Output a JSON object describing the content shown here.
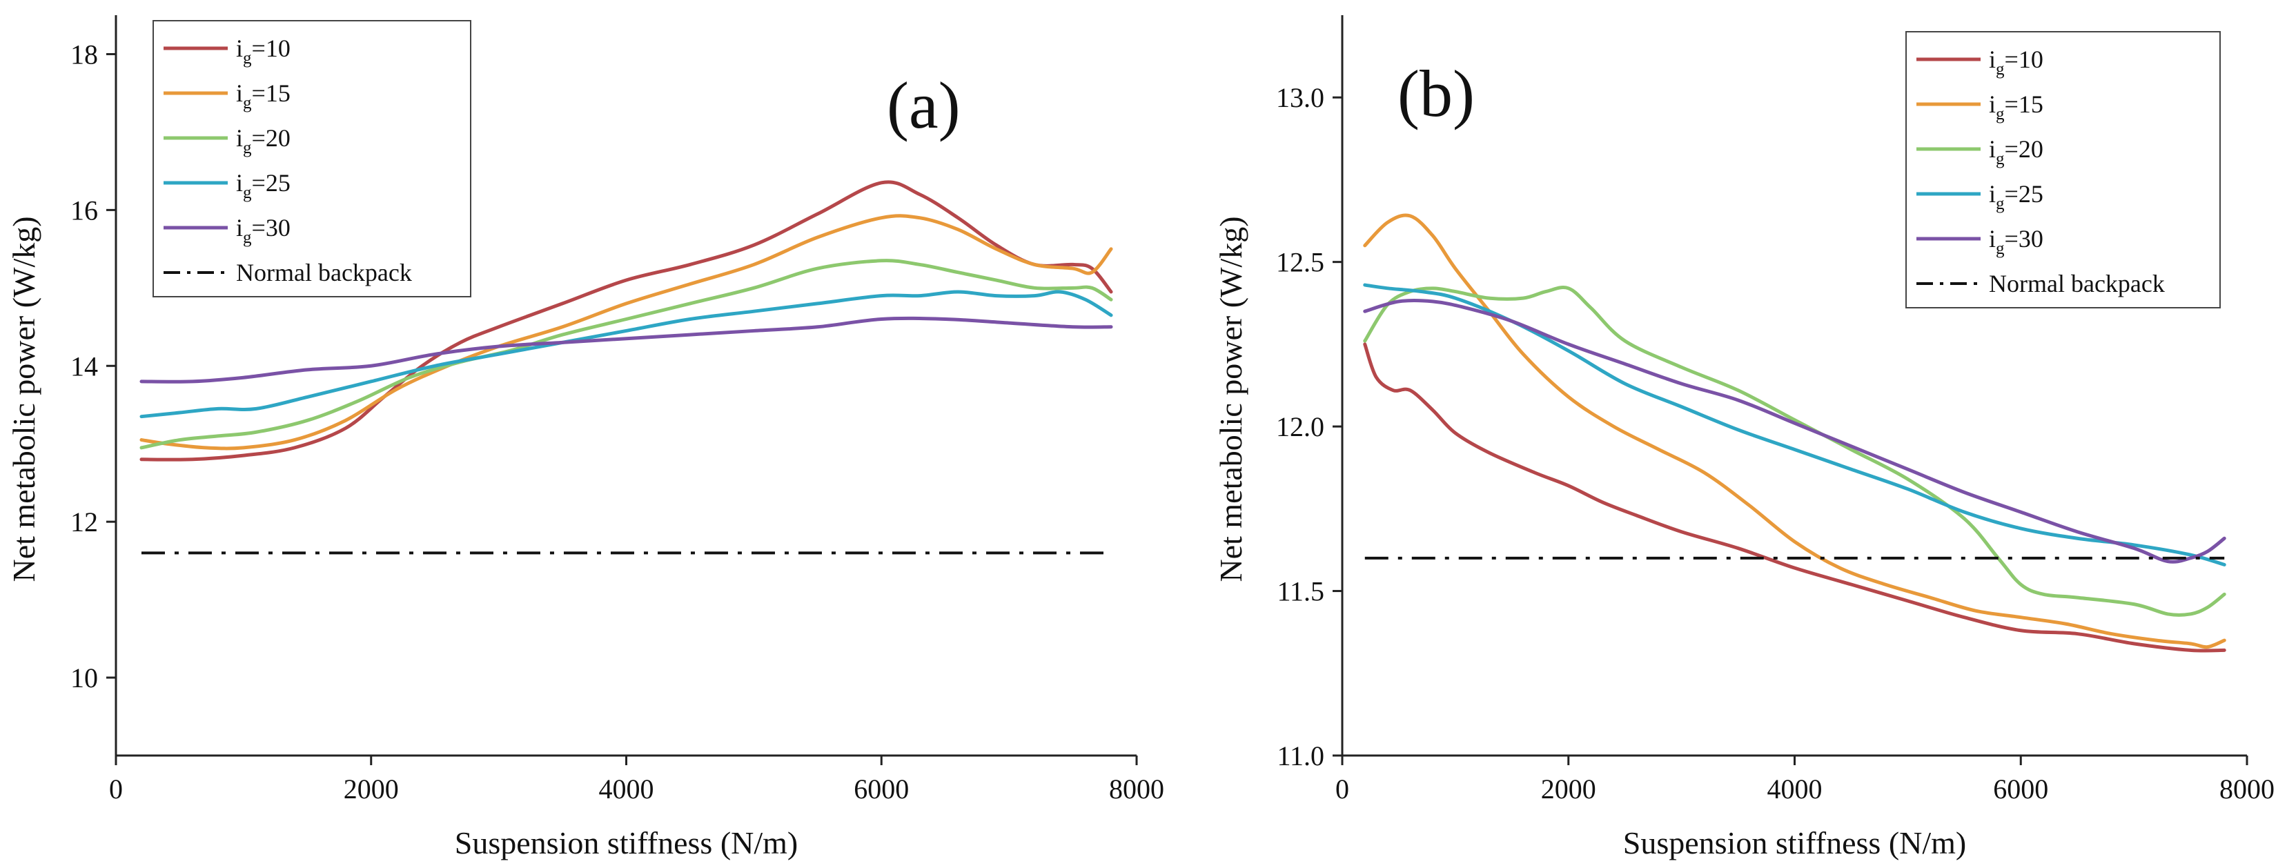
{
  "chart_data": [
    {
      "type": "line",
      "panel_label": "(a)",
      "xlabel": "Suspension stiffness (N/m)",
      "ylabel": "Net metabolic power (W/kg)",
      "xlim": [
        0,
        8000
      ],
      "ylim": [
        9,
        18.5
      ],
      "xticks": [
        0,
        2000,
        4000,
        6000,
        8000
      ],
      "xtick_labels": [
        "0",
        "2000",
        "4000",
        "6000",
        "8000"
      ],
      "yticks": [
        10,
        12,
        14,
        16,
        18
      ],
      "ytick_labels": [
        "10",
        "12",
        "14",
        "16",
        "18"
      ],
      "legend_position": "top-left",
      "series": [
        {
          "name": "i_g=10",
          "label_main": "i",
          "label_sub": "g",
          "label_rest": "=10",
          "color": "#b5474a",
          "x": [
            200,
            600,
            1000,
            1400,
            1800,
            2100,
            2400,
            2700,
            3000,
            3500,
            4000,
            4500,
            5000,
            5500,
            6000,
            6300,
            6600,
            6900,
            7200,
            7500,
            7650,
            7800
          ],
          "y": [
            12.8,
            12.8,
            12.85,
            12.95,
            13.2,
            13.6,
            14.0,
            14.3,
            14.5,
            14.8,
            15.1,
            15.3,
            15.55,
            15.95,
            16.35,
            16.2,
            15.9,
            15.55,
            15.3,
            15.3,
            15.25,
            14.95
          ]
        },
        {
          "name": "i_g=15",
          "label_main": "i",
          "label_sub": "g",
          "label_rest": "=15",
          "color": "#e8993a",
          "x": [
            200,
            400,
            700,
            1000,
            1400,
            1800,
            2200,
            2600,
            3000,
            3500,
            4000,
            4500,
            5000,
            5500,
            6000,
            6300,
            6600,
            6900,
            7200,
            7500,
            7650,
            7800
          ],
          "y": [
            13.05,
            13.0,
            12.95,
            12.95,
            13.05,
            13.3,
            13.7,
            14.0,
            14.25,
            14.5,
            14.8,
            15.05,
            15.3,
            15.65,
            15.9,
            15.9,
            15.75,
            15.5,
            15.3,
            15.25,
            15.2,
            15.5
          ]
        },
        {
          "name": "i_g=20",
          "label_main": "i",
          "label_sub": "g",
          "label_rest": "=20",
          "color": "#8dc86e",
          "x": [
            200,
            500,
            800,
            1100,
            1500,
            1900,
            2300,
            2700,
            3100,
            3500,
            4000,
            4500,
            5000,
            5500,
            6000,
            6300,
            6600,
            6900,
            7200,
            7500,
            7650,
            7800
          ],
          "y": [
            12.95,
            13.05,
            13.1,
            13.15,
            13.3,
            13.55,
            13.85,
            14.05,
            14.2,
            14.4,
            14.6,
            14.8,
            15.0,
            15.25,
            15.35,
            15.3,
            15.2,
            15.1,
            15.0,
            15.0,
            15.0,
            14.85
          ]
        },
        {
          "name": "i_g=25",
          "label_main": "i",
          "label_sub": "g",
          "label_rest": "=25",
          "color": "#2ea6c4",
          "x": [
            200,
            500,
            800,
            1100,
            1500,
            2000,
            2500,
            3000,
            3500,
            4000,
            4500,
            5000,
            5500,
            6000,
            6300,
            6600,
            6900,
            7200,
            7400,
            7600,
            7800
          ],
          "y": [
            13.35,
            13.4,
            13.45,
            13.45,
            13.6,
            13.8,
            14.0,
            14.15,
            14.3,
            14.45,
            14.6,
            14.7,
            14.8,
            14.9,
            14.9,
            14.95,
            14.9,
            14.9,
            14.95,
            14.85,
            14.65
          ]
        },
        {
          "name": "i_g=30",
          "label_main": "i",
          "label_sub": "g",
          "label_rest": "=30",
          "color": "#7a52a6",
          "x": [
            200,
            600,
            1000,
            1500,
            2000,
            2500,
            3000,
            3500,
            4000,
            4500,
            5000,
            5500,
            6000,
            6500,
            7000,
            7500,
            7800
          ],
          "y": [
            13.8,
            13.8,
            13.85,
            13.95,
            14.0,
            14.15,
            14.25,
            14.3,
            14.35,
            14.4,
            14.45,
            14.5,
            14.6,
            14.6,
            14.55,
            14.5,
            14.5
          ]
        },
        {
          "name": "Normal backpack",
          "color": "#111111",
          "dash": "dashdot",
          "x": [
            200,
            7800
          ],
          "y": [
            11.6,
            11.6
          ]
        }
      ]
    },
    {
      "type": "line",
      "panel_label": "(b)",
      "xlabel": "Suspension stiffness (N/m)",
      "ylabel": "Net metabolic power (W/kg)",
      "xlim": [
        0,
        8000
      ],
      "ylim": [
        11.0,
        13.25
      ],
      "xticks": [
        0,
        2000,
        4000,
        6000,
        8000
      ],
      "xtick_labels": [
        "0",
        "2000",
        "4000",
        "6000",
        "8000"
      ],
      "yticks": [
        11.0,
        11.5,
        12.0,
        12.5,
        13.0
      ],
      "ytick_labels": [
        "11.0",
        "11.5",
        "12.0",
        "12.5",
        "13.0"
      ],
      "legend_position": "top-right",
      "series": [
        {
          "name": "i_g=10",
          "label_main": "i",
          "label_sub": "g",
          "label_rest": "=10",
          "color": "#b5474a",
          "x": [
            200,
            300,
            450,
            600,
            800,
            1000,
            1300,
            1700,
            2000,
            2300,
            2600,
            3000,
            3500,
            4000,
            4500,
            5000,
            5500,
            6000,
            6500,
            7000,
            7500,
            7800
          ],
          "y": [
            12.25,
            12.15,
            12.11,
            12.11,
            12.05,
            11.98,
            11.92,
            11.86,
            11.82,
            11.77,
            11.73,
            11.68,
            11.63,
            11.57,
            11.52,
            11.47,
            11.42,
            11.38,
            11.37,
            11.34,
            11.32,
            11.32
          ]
        },
        {
          "name": "i_g=15",
          "label_main": "i",
          "label_sub": "g",
          "label_rest": "=15",
          "color": "#e8993a",
          "x": [
            200,
            400,
            600,
            800,
            1000,
            1300,
            1600,
            2000,
            2400,
            2800,
            3200,
            3600,
            4000,
            4400,
            4800,
            5200,
            5600,
            6000,
            6400,
            6800,
            7200,
            7500,
            7650,
            7800
          ],
          "y": [
            12.55,
            12.62,
            12.64,
            12.58,
            12.48,
            12.35,
            12.22,
            12.09,
            12.0,
            11.93,
            11.86,
            11.76,
            11.65,
            11.57,
            11.52,
            11.48,
            11.44,
            11.42,
            11.4,
            11.37,
            11.35,
            11.34,
            11.33,
            11.35
          ]
        },
        {
          "name": "i_g=20",
          "label_main": "i",
          "label_sub": "g",
          "label_rest": "=20",
          "color": "#8dc86e",
          "x": [
            200,
            400,
            600,
            800,
            1000,
            1300,
            1600,
            1800,
            2000,
            2200,
            2500,
            3000,
            3500,
            4000,
            4500,
            5000,
            5500,
            5800,
            6000,
            6200,
            6500,
            7000,
            7300,
            7500,
            7650,
            7800
          ],
          "y": [
            12.26,
            12.37,
            12.41,
            12.42,
            12.41,
            12.39,
            12.39,
            12.41,
            12.42,
            12.36,
            12.26,
            12.18,
            12.11,
            12.02,
            11.93,
            11.84,
            11.72,
            11.6,
            11.52,
            11.49,
            11.48,
            11.46,
            11.43,
            11.43,
            11.45,
            11.49
          ]
        },
        {
          "name": "i_g=25",
          "label_main": "i",
          "label_sub": "g",
          "label_rest": "=25",
          "color": "#2ea6c4",
          "x": [
            200,
            400,
            700,
            1000,
            1500,
            2000,
            2500,
            3000,
            3500,
            4000,
            4500,
            5000,
            5500,
            6000,
            6500,
            7000,
            7500,
            7800
          ],
          "y": [
            12.43,
            12.42,
            12.41,
            12.39,
            12.32,
            12.23,
            12.13,
            12.06,
            11.99,
            11.93,
            11.87,
            11.81,
            11.74,
            11.69,
            11.66,
            11.64,
            11.61,
            11.58
          ]
        },
        {
          "name": "i_g=30",
          "label_main": "i",
          "label_sub": "g",
          "label_rest": "=30",
          "color": "#7a52a6",
          "x": [
            200,
            500,
            800,
            1100,
            1500,
            2000,
            2500,
            3000,
            3500,
            4000,
            4500,
            5000,
            5500,
            6000,
            6500,
            7000,
            7300,
            7500,
            7650,
            7800
          ],
          "y": [
            12.35,
            12.38,
            12.38,
            12.36,
            12.32,
            12.25,
            12.19,
            12.13,
            12.08,
            12.01,
            11.94,
            11.87,
            11.8,
            11.74,
            11.68,
            11.63,
            11.59,
            11.6,
            11.62,
            11.66
          ]
        },
        {
          "name": "Normal backpack",
          "color": "#111111",
          "dash": "dashdot",
          "x": [
            200,
            7800
          ],
          "y": [
            11.6,
            11.6
          ]
        }
      ]
    }
  ]
}
